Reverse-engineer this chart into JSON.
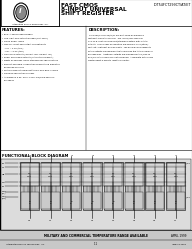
{
  "bg_color": "#e8e8e8",
  "page_bg": "#ffffff",
  "title_line1": "FAST CMOS",
  "title_line2": "8-INPUT UNIVERSAL",
  "title_line3": "SHIFT REGISTER",
  "part_number": "IDT54FCT299CT/AT/ET",
  "company": "Integrated Device Technology, Inc.",
  "features_title": "FEATURES:",
  "features": [
    "• ESD, A and B speed grades",
    "• Low input and output leakage (1μA max.)",
    "• CMOS power levels",
    "• True TTL input and output compatibility",
    "   - VIH = 2.0V (typ.)",
    "   - VOL = 0.5V (typ.)",
    "• High drive outputs (±15mA IOH, ±24mA IOL)",
    "• Power off disable outputs (active true readout)",
    "• Meets or exceeds JEDEC standard for specifications",
    "• Product available in Radiation Tolerant and Radiation",
    "   Enhanced versions",
    "• Military product compliant to MIL-STD-883, Class B",
    "• CMOSITE fabrication process",
    "• Available in 0.65' SOIC, SSOP, DIP/PDIP and LCC",
    "   packages"
  ],
  "description_title": "DESCRIPTION:",
  "description_lines": [
    "The IDT54/74FCT299/AT/CT are built using an advanced",
    "fast input CMOS technology.  The IDT54/74FCT299 has",
    "17.5 ns 8-input universal shift/storage registers with 3-state",
    "outputs.  Four modes of operation are possible: hold (store),",
    "shift-left, shift-right and load data.  The parallel load capability",
    "of the outputs are implemented to minimize the total number of",
    "package pins.  Additional outputs are provided for the /Q0s S0",
    "and /Q7 S7 to allow easy shift cascading.  A separate active LOW",
    "Master Reset is used to reset the register."
  ],
  "diagram_title": "FUNCTIONAL BLOCK DIAGRAM",
  "footer_military": "MILITARY AND COMMERCIAL TEMPERATURE RANGE AVAILABLE",
  "footer_date": "APRIL 1999",
  "footer_company": "Integrated Device Technology, Inc.",
  "footer_page": "1-1",
  "footer_part": "IDT54FCT299",
  "diag_bg": "#dcdcdc",
  "cell_fill": "#b0b0b0",
  "cell_stroke": "#555555"
}
